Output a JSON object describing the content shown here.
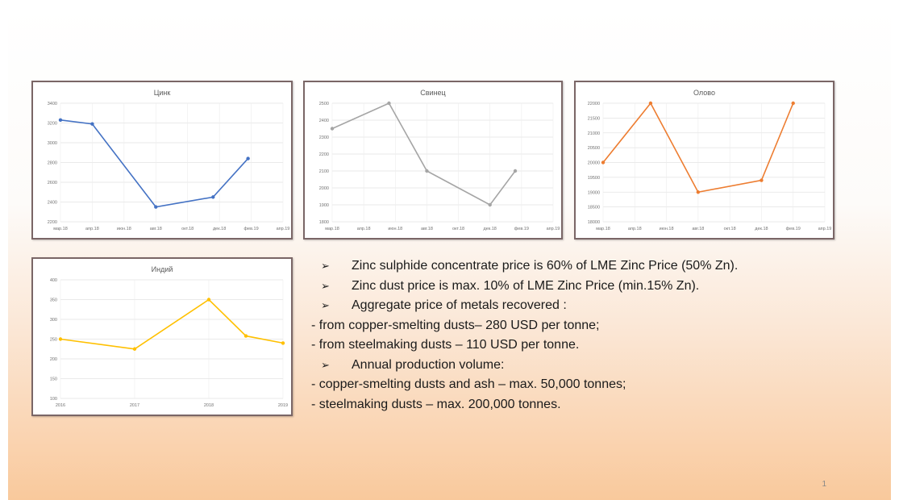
{
  "slide": {
    "page_number": "1",
    "bullets": [
      {
        "marker": "➢",
        "text": "Zinc sulphide concentrate price is 60% of LME Zinc Price (50% Zn)."
      },
      {
        "marker": "➢",
        "text": "Zinc  dust price is max. 10% of LME Zinc Price (min.15% Zn)."
      },
      {
        "marker": "➢",
        "text": "Aggregate  price of metals recovered :"
      },
      {
        "marker": "",
        "text": "- from copper-smelting dusts– 280 USD per tonne;"
      },
      {
        "marker": "",
        "text": "- from steelmaking dusts – 110 USD per tonne."
      },
      {
        "marker": "➢",
        "text": "Annual production volume:"
      },
      {
        "marker": "",
        "text": "- copper-smelting dusts and ash – max. 50,000 tonnes;"
      },
      {
        "marker": "",
        "text": "- steelmaking dusts  – max. 200,000 tonnes."
      }
    ]
  },
  "chart_data": [
    {
      "type": "line",
      "title": "Цинк",
      "color": "#4472c4",
      "categories": [
        "мар.18",
        "апр.18",
        "июн.18",
        "авг.18",
        "окт.18",
        "дек.18",
        "фев.19",
        "апр.19"
      ],
      "x": [
        0,
        1,
        3,
        4.8,
        5.9
      ],
      "y": [
        3230,
        3190,
        2350,
        2450,
        2840
      ],
      "ylim": [
        2200,
        3400
      ],
      "yticks": [
        "2200",
        "2400",
        "2600",
        "2800",
        "3000",
        "3200",
        "3400"
      ]
    },
    {
      "type": "line",
      "title": "Свинец",
      "color": "#a5a5a5",
      "categories": [
        "мар.18",
        "апр.18",
        "июн.18",
        "авг.18",
        "окт.18",
        "дек.18",
        "фев.19",
        "апр.19"
      ],
      "x": [
        0,
        1.8,
        3,
        5,
        5.8
      ],
      "y": [
        2350,
        2500,
        2100,
        1900,
        2100
      ],
      "ylim": [
        1800,
        2500
      ],
      "yticks": [
        "1800",
        "1900",
        "2000",
        "2100",
        "2200",
        "2300",
        "2400",
        "2500"
      ]
    },
    {
      "type": "line",
      "title": "Олово",
      "color": "#ed7d31",
      "categories": [
        "мар.18",
        "апр.18",
        "июн.18",
        "авг.18",
        "окт.18",
        "дек.18",
        "фев.19",
        "апр.19"
      ],
      "x": [
        0,
        1.5,
        3,
        5,
        6
      ],
      "y": [
        20000,
        22000,
        19000,
        19400,
        22000
      ],
      "ylim": [
        18000,
        22000
      ],
      "yticks": [
        "18000",
        "18500",
        "19000",
        "19500",
        "20000",
        "20500",
        "21000",
        "21500",
        "22000"
      ]
    },
    {
      "type": "line",
      "title": "Индий",
      "color": "#ffc000",
      "categories": [
        "2016",
        "2017",
        "2018",
        "2019"
      ],
      "x": [
        0,
        1,
        2,
        2.5,
        3
      ],
      "y": [
        250,
        225,
        350,
        258,
        240
      ],
      "ylim": [
        100,
        400
      ],
      "yticks": [
        "100",
        "150",
        "200",
        "250",
        "300",
        "350",
        "400"
      ]
    }
  ]
}
